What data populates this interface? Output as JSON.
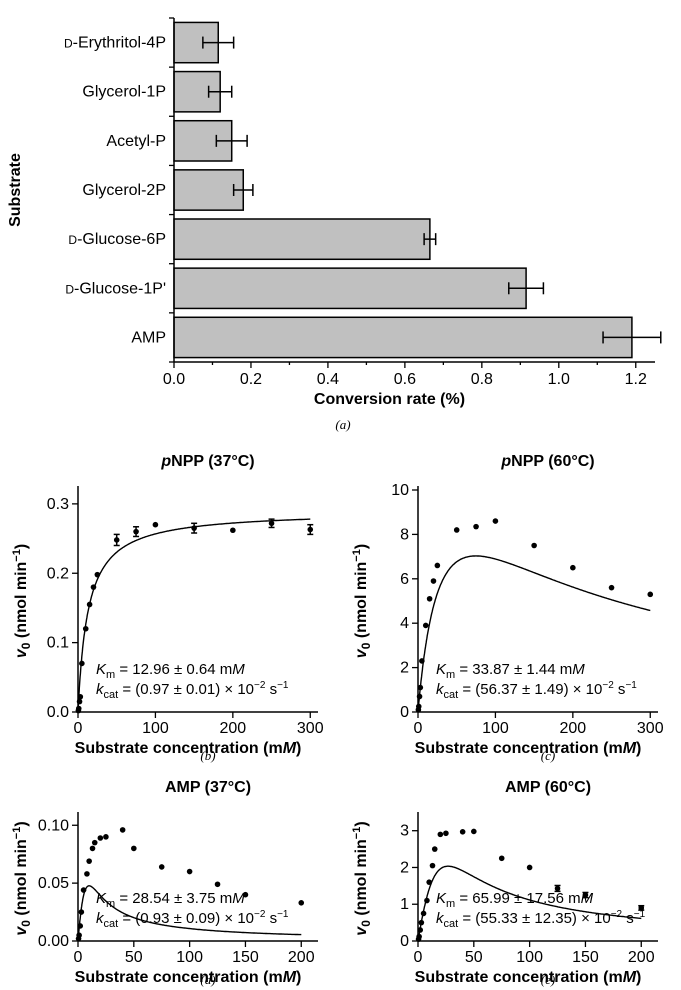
{
  "chart_data": [
    {
      "id": "a",
      "type": "bar",
      "orientation": "horizontal",
      "tag": "(a)",
      "xlabel": "Conversion rate (%)",
      "ylabel": "Substrate",
      "xlim": [
        0,
        1.25
      ],
      "xticks": [
        "0.0",
        "0.2",
        "0.4",
        "0.6",
        "0.8",
        "1.0",
        "1.2"
      ],
      "categories": [
        "D-Erythritol-4P",
        "Glycerol-1P",
        "Acetyl-P",
        "Glycerol-2P",
        "D-Glucose-6P",
        "D-Glucose-1P",
        "AMP"
      ],
      "category_parts": [
        {
          "sc": "D",
          "rest": "-Erythritol-4P"
        },
        {
          "sc": "",
          "rest": "Glycerol-1P"
        },
        {
          "sc": "",
          "rest": "Acetyl-P"
        },
        {
          "sc": "",
          "rest": "Glycerol-2P"
        },
        {
          "sc": "D",
          "rest": "-Glucose-6P"
        },
        {
          "sc": "D",
          "rest": "-Glucose-1P'"
        },
        {
          "sc": "",
          "rest": "AMP"
        }
      ],
      "values": [
        0.115,
        0.12,
        0.15,
        0.18,
        0.665,
        0.915,
        1.19
      ],
      "errors": [
        0.04,
        0.03,
        0.04,
        0.025,
        0.015,
        0.045,
        0.075
      ]
    },
    {
      "id": "b",
      "type": "scatter",
      "tag": "(b)",
      "title_italic": "p",
      "title_rest": "NPP (37°C)",
      "xlabel": "Substrate concentration (mM)",
      "ylabel": "v0 (nmol min−1)",
      "xlim": [
        0,
        310
      ],
      "ylim": [
        0,
        0.32
      ],
      "xticks": [
        0,
        100,
        200,
        300
      ],
      "yticks": [
        "0.0",
        "0.1",
        "0.2",
        "0.3"
      ],
      "ytick_values": [
        0,
        0.1,
        0.2,
        0.3
      ],
      "points": [
        [
          0.5,
          0.002
        ],
        [
          1,
          0.005
        ],
        [
          2,
          0.015
        ],
        [
          3,
          0.022
        ],
        [
          5,
          0.07
        ],
        [
          10,
          0.12
        ],
        [
          15,
          0.155
        ],
        [
          20,
          0.18
        ],
        [
          25,
          0.198
        ],
        [
          50,
          0.248
        ],
        [
          75,
          0.26
        ],
        [
          100,
          0.27
        ],
        [
          150,
          0.265
        ],
        [
          200,
          0.262
        ],
        [
          250,
          0.272
        ],
        [
          300,
          0.263
        ]
      ],
      "point_errors": [
        0,
        0,
        0,
        0,
        0,
        0,
        0,
        0,
        0,
        0.008,
        0.007,
        0,
        0.007,
        0,
        0.006,
        0.007
      ],
      "km_text": "= 12.96 ± 0.64 mM",
      "kcat_text": "= (0.97 ± 0.01) × 10−2 s−1",
      "fit": {
        "model": "mm",
        "vmax": 0.29,
        "km": 12.96
      }
    },
    {
      "id": "c",
      "type": "scatter",
      "tag": "(c)",
      "title_italic": "p",
      "title_rest": "NPP (60°C)",
      "xlabel": "Substrate concentration (mM)",
      "ylabel": "v0 (nmol min−1)",
      "xlim": [
        0,
        310
      ],
      "ylim": [
        0,
        10
      ],
      "xticks": [
        0,
        100,
        200,
        300
      ],
      "yticks": [
        "0",
        "2",
        "4",
        "6",
        "8",
        "10"
      ],
      "ytick_values": [
        0,
        2,
        4,
        6,
        8,
        10
      ],
      "points": [
        [
          0.5,
          0.1
        ],
        [
          1,
          0.25
        ],
        [
          2,
          0.7
        ],
        [
          3,
          1.1
        ],
        [
          5,
          2.3
        ],
        [
          10,
          3.9
        ],
        [
          15,
          5.1
        ],
        [
          20,
          5.9
        ],
        [
          25,
          6.6
        ],
        [
          50,
          8.2
        ],
        [
          75,
          8.35
        ],
        [
          100,
          8.6
        ],
        [
          150,
          7.5
        ],
        [
          200,
          6.5
        ],
        [
          250,
          5.6
        ],
        [
          300,
          5.3
        ]
      ],
      "point_errors": [
        0,
        0,
        0,
        0,
        0,
        0,
        0,
        0,
        0,
        0,
        0,
        0,
        0,
        0,
        0,
        0
      ],
      "km_text": "= 33.87 ± 1.44 mM",
      "kcat_text": "= (56.37 ± 1.49) × 10−2 s−1",
      "fit": {
        "model": "si",
        "vmax": 13.4,
        "km": 33.87,
        "ki": 165
      }
    },
    {
      "id": "d",
      "type": "scatter",
      "tag": "(d)",
      "title_italic": "",
      "title_rest": "AMP (37°C)",
      "xlabel": "Substrate concentration (mM)",
      "ylabel": "v0 (nmol min−1)",
      "xlim": [
        0,
        215
      ],
      "ylim": [
        0,
        0.108
      ],
      "xticks": [
        0,
        50,
        100,
        150,
        200
      ],
      "yticks": [
        "0.00",
        "0.05",
        "0.10"
      ],
      "ytick_values": [
        0,
        0.05,
        0.1
      ],
      "points": [
        [
          0.5,
          0.002
        ],
        [
          1,
          0.005
        ],
        [
          2,
          0.013
        ],
        [
          3,
          0.025
        ],
        [
          5,
          0.044
        ],
        [
          8,
          0.058
        ],
        [
          10,
          0.069
        ],
        [
          13,
          0.08
        ],
        [
          15,
          0.085
        ],
        [
          20,
          0.089
        ],
        [
          25,
          0.09
        ],
        [
          40,
          0.096
        ],
        [
          50,
          0.08
        ],
        [
          75,
          0.064
        ],
        [
          100,
          0.06
        ],
        [
          125,
          0.049
        ],
        [
          150,
          0.04
        ],
        [
          200,
          0.033
        ]
      ],
      "point_errors": [
        0,
        0,
        0,
        0,
        0,
        0,
        0,
        0,
        0,
        0,
        0,
        0,
        0,
        0,
        0,
        0,
        0,
        0
      ],
      "km_text": "= 28.54 ± 3.75 mM",
      "kcat_text": "= (0.93 ± 0.09) × 10−2 s−1",
      "fit": {
        "model": "si",
        "vmax": 0.32,
        "km": 28.54,
        "ki": 3.5
      }
    },
    {
      "id": "e",
      "type": "scatter",
      "tag": "(e)",
      "title_italic": "",
      "title_rest": "AMP (60°C)",
      "xlabel": "Substrate concentration (mM)",
      "ylabel": "v0 (nmol min−1)",
      "xlim": [
        0,
        215
      ],
      "ylim": [
        0,
        3.4
      ],
      "xticks": [
        0,
        50,
        100,
        150,
        200
      ],
      "yticks": [
        "0",
        "1",
        "2",
        "3"
      ],
      "ytick_values": [
        0,
        1,
        2,
        3
      ],
      "points": [
        [
          0.5,
          0.05
        ],
        [
          1,
          0.12
        ],
        [
          2,
          0.3
        ],
        [
          3,
          0.5
        ],
        [
          5,
          0.75
        ],
        [
          8,
          1.1
        ],
        [
          10,
          1.6
        ],
        [
          13,
          2.05
        ],
        [
          15,
          2.5
        ],
        [
          20,
          2.9
        ],
        [
          25,
          2.93
        ],
        [
          40,
          2.97
        ],
        [
          50,
          2.98
        ],
        [
          75,
          2.25
        ],
        [
          100,
          2.0
        ],
        [
          125,
          1.43
        ],
        [
          150,
          1.25
        ],
        [
          200,
          0.9
        ]
      ],
      "point_errors": [
        0,
        0,
        0,
        0,
        0,
        0,
        0,
        0,
        0,
        0,
        0,
        0,
        0,
        0,
        0,
        0.08,
        0.07,
        0.06
      ],
      "km_text": "= 65.99 ± 17.56 mM",
      "kcat_text": "= (55.33 ± 12.35) × 10−2 s−1",
      "fit": {
        "model": "si",
        "vmax": 12.0,
        "km": 65.99,
        "ki": 11.0
      }
    }
  ]
}
